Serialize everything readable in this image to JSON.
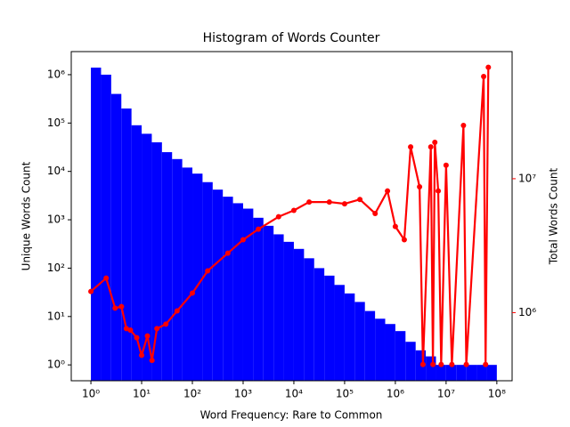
{
  "chart_data": {
    "type": "histogram",
    "title": "Histogram of Words Counter",
    "xlabel": "Word Frequency: Rare to Common",
    "ylabel": "Unique Words Count",
    "y2label": "Total Words Count",
    "xscale": "log",
    "yscale": "log",
    "y2scale": "log",
    "color": "#0000ff",
    "bins": [
      1,
      1.585,
      2.512,
      3.981,
      6.31,
      10,
      15.85,
      25.12,
      39.81,
      63.1,
      100,
      158.5,
      251.2,
      398.1,
      631,
      1000,
      1585,
      2512,
      3981,
      6310,
      10000,
      15850,
      25120,
      39810,
      63100,
      100000,
      158500,
      251200,
      398100,
      631000,
      1000000,
      1585000,
      2512000,
      3981000,
      6310000,
      10000000,
      15850000,
      25120000,
      39810000,
      63100000,
      100000000
    ],
    "values": [
      1400000,
      1000000,
      400000,
      200000,
      90000,
      60000,
      40000,
      25000,
      18000,
      12000,
      9000,
      6000,
      4200,
      3000,
      2200,
      1700,
      1100,
      750,
      500,
      350,
      250,
      160,
      100,
      70,
      45,
      30,
      20,
      13,
      9,
      7,
      5,
      3,
      2,
      1.5,
      1,
      1,
      1,
      1,
      1,
      1
    ],
    "overlay": {
      "type": "line",
      "axis": "y2",
      "color": "#ff0000",
      "x": [
        1,
        2,
        3,
        4,
        5,
        6,
        8,
        10,
        13,
        16,
        20,
        30,
        50,
        100,
        200,
        500,
        1000,
        2000,
        5000,
        10000,
        20000,
        50000,
        100000,
        200000,
        400000,
        700000,
        1000000,
        1500000,
        2000000,
        3000000,
        3500000,
        5000000,
        5500000,
        6000000,
        7000000,
        8000000,
        10000000,
        13000000,
        22000000,
        25000000,
        55000000,
        60000000,
        68000000
      ],
      "values": [
        1440000,
        1810000,
        1080000,
        1110000,
        760000,
        740000,
        650000,
        480000,
        670000,
        440000,
        760000,
        820000,
        1030000,
        1400000,
        2050000,
        2780000,
        3500000,
        4200000,
        5200000,
        5800000,
        6700000,
        6700000,
        6500000,
        7000000,
        5500000,
        8100000,
        4400000,
        3500000,
        17300000,
        8700000,
        410000,
        17300000,
        410000,
        18700000,
        8100000,
        410000,
        12600000,
        410000,
        25000000,
        410000,
        58000000,
        410000,
        68000000
      ]
    },
    "xlim": [
      0.41,
      200000000
    ],
    "ylim": [
      0.47,
      3000000
    ],
    "y2lim": [
      310000,
      89000000
    ],
    "xticks": [
      {
        "value": 1,
        "label": "10⁰"
      },
      {
        "value": 10,
        "label": "10¹"
      },
      {
        "value": 100,
        "label": "10²"
      },
      {
        "value": 1000,
        "label": "10³"
      },
      {
        "value": 10000,
        "label": "10⁴"
      },
      {
        "value": 100000,
        "label": "10⁵"
      },
      {
        "value": 1000000,
        "label": "10⁶"
      },
      {
        "value": 10000000,
        "label": "10⁷"
      },
      {
        "value": 100000000,
        "label": "10⁸"
      }
    ],
    "yticks": [
      {
        "value": 1,
        "label": "10⁰"
      },
      {
        "value": 10,
        "label": "10¹"
      },
      {
        "value": 100,
        "label": "10²"
      },
      {
        "value": 1000,
        "label": "10³"
      },
      {
        "value": 10000,
        "label": "10⁴"
      },
      {
        "value": 100000,
        "label": "10⁵"
      },
      {
        "value": 1000000,
        "label": "10⁶"
      }
    ],
    "y2ticks": [
      {
        "value": 1000000,
        "label": "10⁶"
      },
      {
        "value": 10000000,
        "label": "10⁷"
      }
    ]
  }
}
